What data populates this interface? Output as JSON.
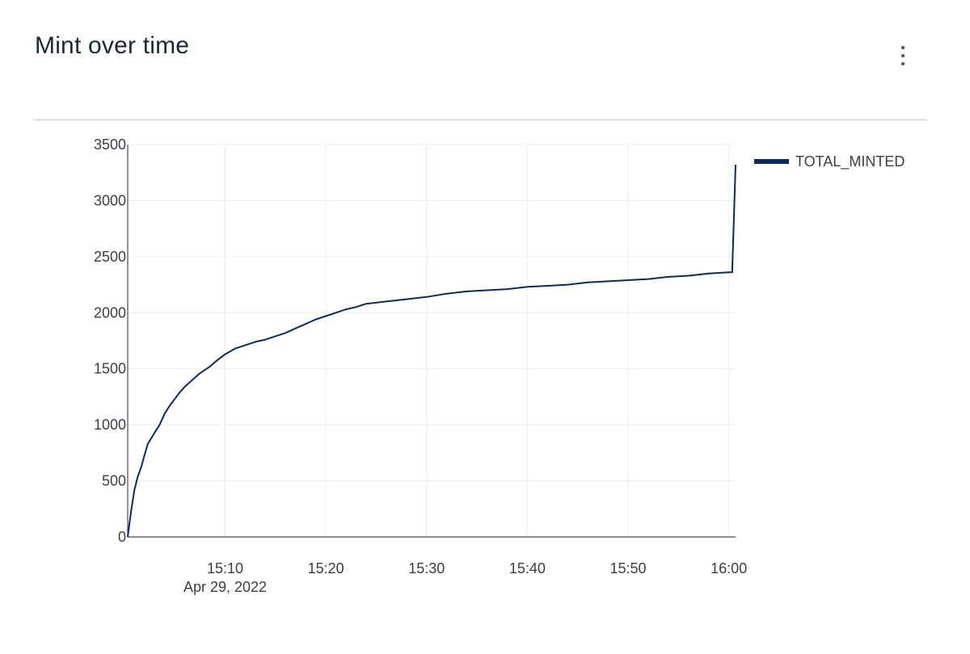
{
  "header": {
    "title": "Mint over time",
    "menu_icon": "more-vertical-icon"
  },
  "colors": {
    "series": "#0f2a56",
    "grid": "#ececec",
    "axis": "#4a4f55",
    "divider": "#c6c9cd"
  },
  "chart_data": {
    "type": "line",
    "title": "",
    "xlabel": "",
    "ylabel": "",
    "x_date_label": "Apr 29, 2022",
    "x_ticks": [
      "15:10",
      "15:20",
      "15:30",
      "15:40",
      "15:50",
      "16:00"
    ],
    "y_ticks": [
      0,
      500,
      1000,
      1500,
      2000,
      2500,
      3000,
      3500
    ],
    "xlim": [
      "15:00:20",
      "16:00:40"
    ],
    "ylim": [
      0,
      3500
    ],
    "grid": true,
    "legend_position": "top-right",
    "series": [
      {
        "name": "TOTAL_MINTED",
        "x": [
          "15:00:20",
          "15:00:40",
          "15:01:00",
          "15:01:20",
          "15:01:40",
          "15:02:00",
          "15:02:20",
          "15:02:40",
          "15:03:00",
          "15:03:30",
          "15:04:00",
          "15:04:30",
          "15:05:00",
          "15:05:30",
          "15:06:00",
          "15:06:30",
          "15:07:00",
          "15:07:30",
          "15:08:00",
          "15:08:30",
          "15:09:00",
          "15:10:00",
          "15:11:00",
          "15:12:00",
          "15:13:00",
          "15:14:00",
          "15:15:00",
          "15:16:00",
          "15:17:00",
          "15:18:00",
          "15:19:00",
          "15:20:00",
          "15:21:00",
          "15:22:00",
          "15:23:00",
          "15:24:00",
          "15:26:00",
          "15:28:00",
          "15:30:00",
          "15:32:00",
          "15:34:00",
          "15:36:00",
          "15:38:00",
          "15:40:00",
          "15:42:00",
          "15:44:00",
          "15:46:00",
          "15:48:00",
          "15:50:00",
          "15:52:00",
          "15:54:00",
          "15:56:00",
          "15:58:00",
          "16:00:00",
          "16:00:20",
          "16:00:40"
        ],
        "values": [
          0,
          230,
          420,
          540,
          620,
          730,
          830,
          880,
          930,
          1000,
          1100,
          1170,
          1230,
          1290,
          1340,
          1380,
          1420,
          1460,
          1490,
          1520,
          1560,
          1630,
          1680,
          1710,
          1740,
          1760,
          1790,
          1820,
          1860,
          1900,
          1940,
          1970,
          2000,
          2030,
          2050,
          2080,
          2100,
          2120,
          2140,
          2170,
          2190,
          2200,
          2210,
          2230,
          2240,
          2250,
          2270,
          2280,
          2290,
          2300,
          2320,
          2330,
          2350,
          2360,
          2360,
          3320
        ]
      }
    ]
  }
}
